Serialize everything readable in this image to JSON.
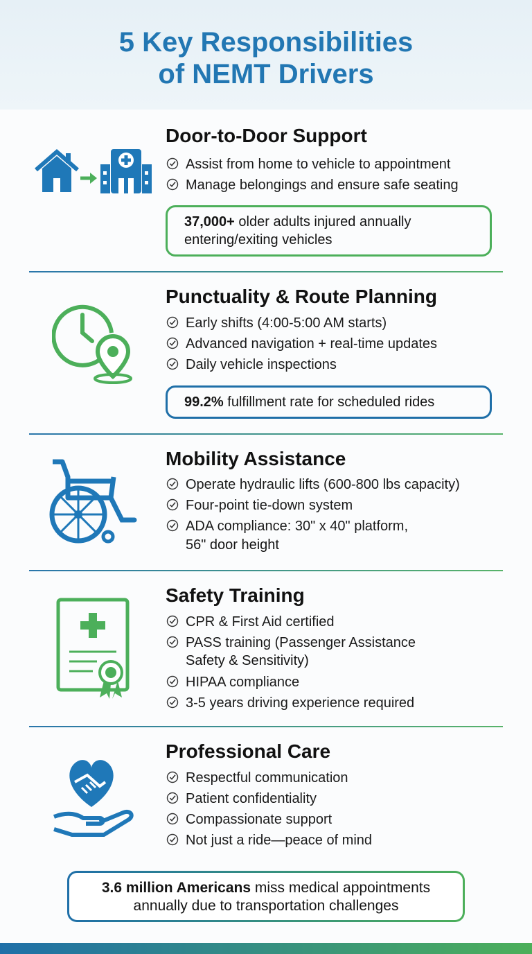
{
  "title": {
    "line1": "5 Key Responsibilities",
    "line2": "of NEMT Drivers"
  },
  "sections": [
    {
      "title": "Door-to-Door Support",
      "icon": "home-to-hospital-icon",
      "bullets": [
        "Assist from home to vehicle to appointment",
        "Manage belongings and ensure safe seating"
      ],
      "stat": {
        "bold": "37,000+",
        "text_line1": " older adults injured annually",
        "text_line2": "entering/exiting vehicles"
      }
    },
    {
      "title": "Punctuality & Route Planning",
      "icon": "clock-location-icon",
      "bullets": [
        "Early shifts (4:00-5:00 AM starts)",
        "Advanced navigation + real-time updates",
        "Daily vehicle inspections"
      ],
      "stat": {
        "bold": "99.2%",
        "text": " fulfillment rate for scheduled rides"
      }
    },
    {
      "title": "Mobility Assistance",
      "icon": "wheelchair-icon",
      "bullets": [
        "Operate hydraulic lifts (600-800 lbs capacity)",
        "Four-point tie-down system",
        "ADA compliance: 30\" x 40\" platform,"
      ],
      "bullet_cont": "56\" door height"
    },
    {
      "title": "Safety Training",
      "icon": "certificate-icon",
      "bullets": [
        "CPR & First Aid certified",
        "PASS training (Passenger Assistance",
        "HIPAA compliance",
        "3-5 years driving experience required"
      ],
      "bullet_cont": "Safety & Sensitivity)"
    },
    {
      "title": "Professional Care",
      "icon": "heart-handshake-icon",
      "bullets": [
        "Respectful communication",
        "Patient confidentiality",
        "Compassionate support",
        "Not just a ride—peace of mind"
      ]
    }
  ],
  "final": {
    "bold": "3.6 million Americans",
    "text_line1": " miss medical appointments",
    "text_line2": "annually due to transportation challenges"
  },
  "colors": {
    "blue": "#1f6fa8",
    "green": "#4caf5a"
  }
}
